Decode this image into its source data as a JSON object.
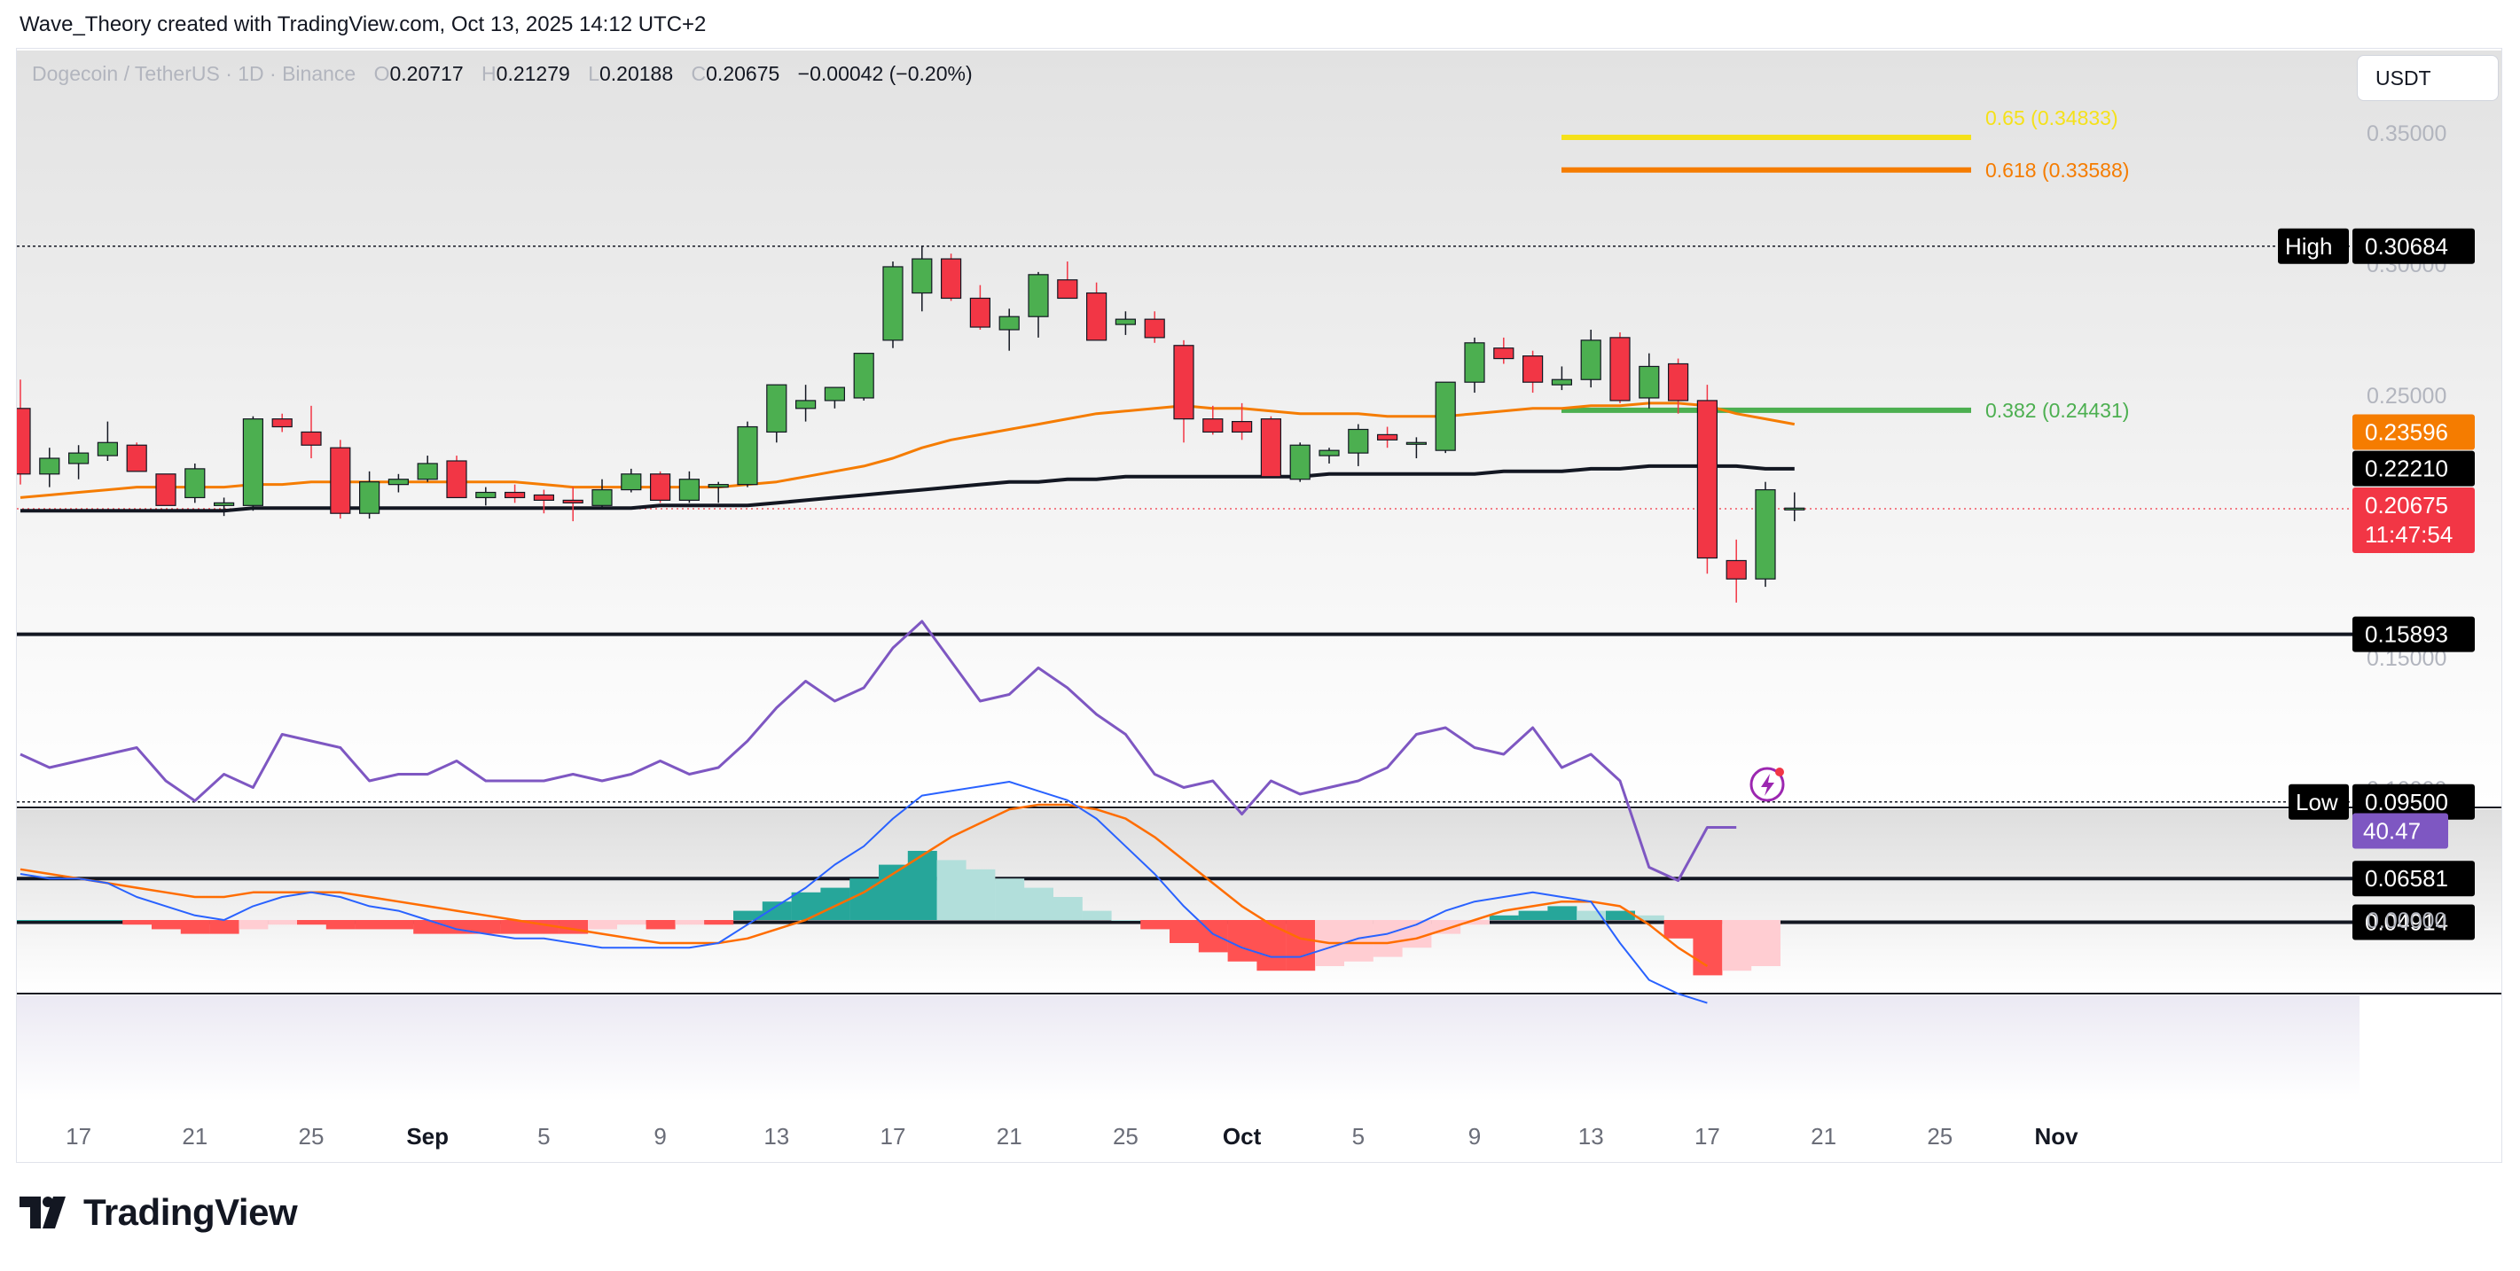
{
  "header": {
    "credit": "Wave_Theory created with TradingView.com, Oct 13, 2025 14:12 UTC+2"
  },
  "symbol": {
    "name": "Dogecoin / TetherUS · 1D · Binance",
    "open_key": "O",
    "open": "0.20717",
    "high_key": "H",
    "high": "0.21279",
    "low_key": "L",
    "low": "0.20188",
    "close_key": "C",
    "close": "0.20675",
    "change": "−0.00042 (−0.20%)"
  },
  "currency_button": "USDT",
  "brand": "TradingView",
  "colors": {
    "up": "#4caf50",
    "down": "#f23645",
    "ema_fast": "#f57c00",
    "ema_slow": "#131722",
    "fib_382": "#4caf50",
    "fib_618": "#f57c00",
    "fib_65": "#f5e11a",
    "macd": "#2962ff",
    "signal": "#ff6d00",
    "rsi": "#7e57c2"
  },
  "chart_data": [
    {
      "type": "candlestick",
      "pane": "price",
      "ylim": [
        0.04,
        0.37
      ],
      "y_ticks": [
        "0.35000",
        "0.30000",
        "0.25000",
        "0.20000",
        "0.15000",
        "0.10000"
      ],
      "x_ticks": [
        "17",
        "21",
        "25",
        "Sep",
        "5",
        "9",
        "13",
        "17",
        "21",
        "25",
        "Oct",
        "5",
        "9",
        "13",
        "17",
        "21",
        "25",
        "Nov"
      ],
      "candles": [
        [
          0.245,
          0.256,
          0.216,
          0.22
        ],
        [
          0.22,
          0.23,
          0.215,
          0.226
        ],
        [
          0.224,
          0.231,
          0.218,
          0.228
        ],
        [
          0.227,
          0.24,
          0.225,
          0.232
        ],
        [
          0.231,
          0.232,
          0.221,
          0.221
        ],
        [
          0.22,
          0.22,
          0.208,
          0.208
        ],
        [
          0.211,
          0.224,
          0.209,
          0.222
        ],
        [
          0.208,
          0.211,
          0.204,
          0.209
        ],
        [
          0.208,
          0.242,
          0.206,
          0.241
        ],
        [
          0.241,
          0.243,
          0.236,
          0.238
        ],
        [
          0.236,
          0.246,
          0.226,
          0.231
        ],
        [
          0.23,
          0.233,
          0.203,
          0.205
        ],
        [
          0.205,
          0.221,
          0.203,
          0.217
        ],
        [
          0.216,
          0.22,
          0.213,
          0.218
        ],
        [
          0.218,
          0.227,
          0.217,
          0.224
        ],
        [
          0.225,
          0.227,
          0.211,
          0.211
        ],
        [
          0.211,
          0.215,
          0.208,
          0.213
        ],
        [
          0.213,
          0.216,
          0.209,
          0.211
        ],
        [
          0.212,
          0.214,
          0.205,
          0.21
        ],
        [
          0.21,
          0.215,
          0.202,
          0.209
        ],
        [
          0.208,
          0.218,
          0.207,
          0.214
        ],
        [
          0.214,
          0.222,
          0.213,
          0.22
        ],
        [
          0.22,
          0.221,
          0.209,
          0.21
        ],
        [
          0.21,
          0.221,
          0.209,
          0.218
        ],
        [
          0.215,
          0.217,
          0.209,
          0.216
        ],
        [
          0.216,
          0.24,
          0.215,
          0.238
        ],
        [
          0.236,
          0.252,
          0.232,
          0.254
        ],
        [
          0.245,
          0.254,
          0.24,
          0.248
        ],
        [
          0.248,
          0.252,
          0.245,
          0.253
        ],
        [
          0.249,
          0.265,
          0.248,
          0.266
        ],
        [
          0.271,
          0.301,
          0.268,
          0.299
        ],
        [
          0.289,
          0.307,
          0.282,
          0.302
        ],
        [
          0.302,
          0.304,
          0.286,
          0.287
        ],
        [
          0.287,
          0.292,
          0.275,
          0.276
        ],
        [
          0.275,
          0.283,
          0.267,
          0.28
        ],
        [
          0.28,
          0.297,
          0.272,
          0.296
        ],
        [
          0.294,
          0.301,
          0.287,
          0.287
        ],
        [
          0.289,
          0.293,
          0.271,
          0.271
        ],
        [
          0.277,
          0.282,
          0.273,
          0.279
        ],
        [
          0.279,
          0.282,
          0.27,
          0.272
        ],
        [
          0.269,
          0.271,
          0.232,
          0.241
        ],
        [
          0.241,
          0.246,
          0.235,
          0.236
        ],
        [
          0.24,
          0.247,
          0.233,
          0.236
        ],
        [
          0.241,
          0.242,
          0.219,
          0.219
        ],
        [
          0.218,
          0.232,
          0.217,
          0.231
        ],
        [
          0.227,
          0.23,
          0.224,
          0.229
        ],
        [
          0.228,
          0.239,
          0.223,
          0.237
        ],
        [
          0.235,
          0.238,
          0.23,
          0.233
        ],
        [
          0.232,
          0.234,
          0.226,
          0.232
        ],
        [
          0.229,
          0.255,
          0.228,
          0.255
        ],
        [
          0.255,
          0.272,
          0.251,
          0.27
        ],
        [
          0.268,
          0.272,
          0.262,
          0.264
        ],
        [
          0.265,
          0.267,
          0.251,
          0.255
        ],
        [
          0.254,
          0.261,
          0.252,
          0.256
        ],
        [
          0.256,
          0.275,
          0.253,
          0.271
        ],
        [
          0.272,
          0.274,
          0.247,
          0.248
        ],
        [
          0.249,
          0.266,
          0.245,
          0.261
        ],
        [
          0.262,
          0.264,
          0.243,
          0.248
        ],
        [
          0.248,
          0.254,
          0.182,
          0.188
        ],
        [
          0.187,
          0.195,
          0.171,
          0.18
        ],
        [
          0.18,
          0.217,
          0.177,
          0.214
        ],
        [
          0.207,
          0.213,
          0.202,
          0.207
        ]
      ],
      "series": [
        {
          "name": "EMA fast",
          "values": [
            0.211,
            0.212,
            0.213,
            0.214,
            0.215,
            0.215,
            0.215,
            0.215,
            0.216,
            0.216,
            0.217,
            0.217,
            0.217,
            0.217,
            0.217,
            0.217,
            0.217,
            0.217,
            0.216,
            0.215,
            0.215,
            0.215,
            0.215,
            0.215,
            0.215,
            0.216,
            0.217,
            0.219,
            0.221,
            0.223,
            0.226,
            0.23,
            0.233,
            0.235,
            0.237,
            0.239,
            0.241,
            0.243,
            0.244,
            0.245,
            0.246,
            0.245,
            0.245,
            0.244,
            0.243,
            0.243,
            0.243,
            0.242,
            0.242,
            0.242,
            0.243,
            0.244,
            0.245,
            0.245,
            0.246,
            0.246,
            0.247,
            0.247,
            0.246,
            0.243,
            0.241,
            0.239
          ]
        },
        {
          "name": "EMA slow",
          "values": [
            0.206,
            0.206,
            0.206,
            0.206,
            0.206,
            0.206,
            0.206,
            0.206,
            0.207,
            0.207,
            0.207,
            0.207,
            0.207,
            0.207,
            0.207,
            0.207,
            0.207,
            0.207,
            0.207,
            0.207,
            0.207,
            0.207,
            0.208,
            0.208,
            0.208,
            0.208,
            0.209,
            0.21,
            0.211,
            0.212,
            0.213,
            0.214,
            0.215,
            0.216,
            0.217,
            0.217,
            0.218,
            0.218,
            0.219,
            0.219,
            0.219,
            0.219,
            0.219,
            0.219,
            0.219,
            0.22,
            0.22,
            0.22,
            0.22,
            0.22,
            0.22,
            0.221,
            0.221,
            0.221,
            0.222,
            0.222,
            0.223,
            0.223,
            0.223,
            0.223,
            0.222,
            0.222
          ]
        }
      ],
      "levels": [
        {
          "label": "High",
          "value": "0.30684"
        },
        {
          "label": "",
          "value": "0.15893"
        },
        {
          "label": "Low",
          "value": "0.09500"
        },
        {
          "label": "",
          "value": "0.06581"
        },
        {
          "label": "",
          "value": "0.04914"
        }
      ],
      "price_tags": [
        {
          "value": "0.23596",
          "color": "#f57c00"
        },
        {
          "value": "0.22210",
          "color": "#000000"
        },
        {
          "value": "0.20675",
          "sub": "11:47:54",
          "color": "#f23645"
        }
      ],
      "fib": [
        {
          "label": "0.65 (0.34833)",
          "value": 0.34833
        },
        {
          "label": "0.618 (0.33588)",
          "value": 0.33588
        },
        {
          "label": "0.382 (0.24431)",
          "value": 0.24431
        }
      ]
    },
    {
      "type": "histogram",
      "pane": "macd",
      "y_ticks": [
        "0.00000"
      ],
      "ylim": [
        -0.03,
        0.035
      ],
      "histogram": [
        0.0,
        0.0,
        0.0,
        0.0,
        -0.001,
        -0.002,
        -0.003,
        -0.003,
        -0.002,
        -0.001,
        -0.001,
        -0.002,
        -0.002,
        -0.002,
        -0.003,
        -0.003,
        -0.003,
        -0.003,
        -0.003,
        -0.003,
        -0.002,
        -0.001,
        -0.002,
        -0.001,
        -0.001,
        0.002,
        0.004,
        0.006,
        0.007,
        0.009,
        0.012,
        0.015,
        0.013,
        0.011,
        0.009,
        0.007,
        0.005,
        0.002,
        0.0,
        -0.002,
        -0.005,
        -0.007,
        -0.009,
        -0.011,
        -0.011,
        -0.01,
        -0.009,
        -0.008,
        -0.006,
        -0.003,
        -0.001,
        0.001,
        0.002,
        0.003,
        0.002,
        0.002,
        0.001,
        -0.004,
        -0.012,
        -0.011,
        -0.01
      ],
      "series": [
        {
          "name": "MACD",
          "values": [
            0.01,
            0.009,
            0.009,
            0.008,
            0.005,
            0.003,
            0.001,
            0.0,
            0.003,
            0.005,
            0.006,
            0.005,
            0.003,
            0.002,
            0.0,
            -0.002,
            -0.003,
            -0.004,
            -0.004,
            -0.005,
            -0.006,
            -0.006,
            -0.006,
            -0.006,
            -0.005,
            -0.001,
            0.003,
            0.007,
            0.012,
            0.016,
            0.022,
            0.027,
            0.028,
            0.029,
            0.03,
            0.028,
            0.026,
            0.022,
            0.016,
            0.01,
            0.003,
            -0.003,
            -0.006,
            -0.008,
            -0.008,
            -0.006,
            -0.004,
            -0.003,
            -0.001,
            0.002,
            0.004,
            0.005,
            0.006,
            0.005,
            0.004,
            -0.005,
            -0.013,
            -0.016,
            -0.018
          ]
        },
        {
          "name": "Signal",
          "values": [
            0.011,
            0.01,
            0.009,
            0.008,
            0.007,
            0.006,
            0.005,
            0.005,
            0.006,
            0.006,
            0.006,
            0.006,
            0.005,
            0.004,
            0.003,
            0.002,
            0.001,
            0.0,
            -0.001,
            -0.002,
            -0.003,
            -0.004,
            -0.005,
            -0.005,
            -0.005,
            -0.004,
            -0.002,
            0.0,
            0.003,
            0.006,
            0.01,
            0.014,
            0.018,
            0.021,
            0.024,
            0.025,
            0.025,
            0.024,
            0.022,
            0.018,
            0.013,
            0.008,
            0.003,
            -0.001,
            -0.004,
            -0.005,
            -0.005,
            -0.005,
            -0.004,
            -0.002,
            0.0,
            0.002,
            0.003,
            0.004,
            0.004,
            0.003,
            -0.001,
            -0.006,
            -0.01
          ]
        }
      ]
    },
    {
      "type": "line",
      "pane": "rsi",
      "ylim": [
        25,
        80
      ],
      "value_tag": "40.47",
      "series": [
        {
          "name": "RSI",
          "values": [
            52,
            50,
            51,
            52,
            53,
            48,
            45,
            49,
            47,
            55,
            54,
            53,
            48,
            49,
            49,
            51,
            48,
            48,
            48,
            49,
            48,
            49,
            51,
            49,
            50,
            54,
            59,
            63,
            60,
            62,
            68,
            72,
            66,
            60,
            61,
            65,
            62,
            58,
            55,
            49,
            47,
            48,
            43,
            48,
            46,
            47,
            48,
            50,
            55,
            56,
            53,
            52,
            56,
            50,
            52,
            48,
            35,
            33,
            41,
            41
          ]
        }
      ]
    }
  ]
}
